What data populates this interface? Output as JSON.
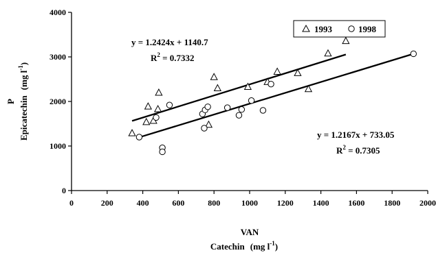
{
  "chart_data": {
    "type": "scatter",
    "xlabel_line1": "VAN",
    "xlabel_line2": "Catechin",
    "xlabel_unit_pre": "(mg l",
    "xlabel_unit_sup": "-1",
    "xlabel_unit_post": ")",
    "ylabel_line1": "P",
    "ylabel_line2": "Epicatechin",
    "ylabel_unit_pre": "(mg l",
    "ylabel_unit_sup": "-1",
    "ylabel_unit_post": ")",
    "xlim": [
      0,
      2000
    ],
    "ylim": [
      0,
      4000
    ],
    "x_ticks": [
      0,
      200,
      400,
      600,
      800,
      1000,
      1200,
      1400,
      1600,
      1800,
      2000
    ],
    "y_ticks": [
      0,
      1000,
      2000,
      3000,
      4000
    ],
    "x_tick_labels": [
      "0",
      "200",
      "400",
      "600",
      "800",
      "1000",
      "1200",
      "1400",
      "1600",
      "1800",
      "2000"
    ],
    "y_tick_labels": [
      "0",
      "1000",
      "2000",
      "3000",
      "4000"
    ],
    "grid": false,
    "legend_position": "top-right",
    "series": [
      {
        "name": "1993",
        "marker": "triangle",
        "points": [
          [
            340,
            1290
          ],
          [
            420,
            1540
          ],
          [
            430,
            1890
          ],
          [
            460,
            1570
          ],
          [
            485,
            1830
          ],
          [
            490,
            2200
          ],
          [
            770,
            1480
          ],
          [
            800,
            2550
          ],
          [
            820,
            2300
          ],
          [
            990,
            2330
          ],
          [
            1100,
            2440
          ],
          [
            1155,
            2670
          ],
          [
            1270,
            2640
          ],
          [
            1330,
            2280
          ],
          [
            1440,
            3080
          ],
          [
            1540,
            3360
          ]
        ],
        "fit": {
          "slope": 1.2424,
          "intercept": 1140.7,
          "x_range": [
            340,
            1540
          ]
        }
      },
      {
        "name": "1998",
        "marker": "circle",
        "points": [
          [
            380,
            1200
          ],
          [
            475,
            1640
          ],
          [
            510,
            960
          ],
          [
            510,
            870
          ],
          [
            550,
            1920
          ],
          [
            735,
            1720
          ],
          [
            745,
            1400
          ],
          [
            750,
            1810
          ],
          [
            765,
            1880
          ],
          [
            875,
            1860
          ],
          [
            940,
            1690
          ],
          [
            955,
            1820
          ],
          [
            1010,
            2020
          ],
          [
            1075,
            1800
          ],
          [
            1120,
            2390
          ],
          [
            1920,
            3070
          ]
        ],
        "fit": {
          "slope": 1.2167,
          "intercept": 733.05,
          "x_range": [
            380,
            1920
          ]
        }
      }
    ],
    "annotations": {
      "eq_1993": "y = 1.2424x + 1140.7",
      "r2_1993_pre": "R",
      "r2_1993_sup": "2",
      "r2_1993_post": " = 0.7332",
      "eq_1998": "y = 1.2167x + 733.05",
      "r2_1998_pre": "R",
      "r2_1998_sup": "2",
      "r2_1998_post": " = 0.7305"
    },
    "colors": {
      "axis": "#000000",
      "marker": "#000000",
      "fit_line": "#000000"
    }
  }
}
